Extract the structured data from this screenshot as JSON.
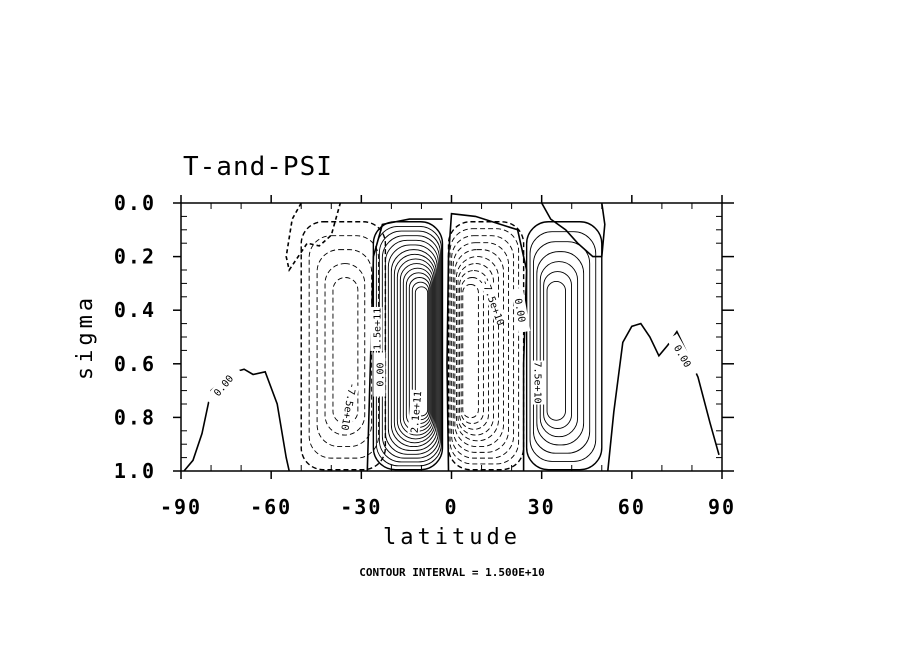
{
  "chart_data": {
    "type": "contour",
    "title": "T-and-PSI",
    "xlabel": "latitude",
    "ylabel": "sigma",
    "xlim": [
      -90,
      90
    ],
    "ylim": [
      0.0,
      1.0
    ],
    "y_inverted": true,
    "x_ticks": [
      -90,
      -60,
      -30,
      0,
      30,
      60,
      90
    ],
    "y_ticks": [
      0.0,
      0.2,
      0.4,
      0.6,
      0.8,
      1.0
    ],
    "y_tick_labels": [
      "0.0",
      "0.2",
      "0.4",
      "0.6",
      "0.8",
      "1.0"
    ],
    "contour_interval": 15000000000.0,
    "contour_interval_label": "CONTOUR INTERVAL = 1.500E+10",
    "negative_contours": "dashed",
    "zero_contour": "thick solid",
    "cells": [
      {
        "name": "southern midlatitude cell",
        "sign": "negative",
        "lat_range": [
          -50,
          -22
        ],
        "center": [
          -35,
          0.55
        ],
        "levels": 5
      },
      {
        "name": "southern tropical cell",
        "sign": "positive",
        "lat_range": [
          -26,
          -3
        ],
        "center": [
          -9,
          0.55
        ],
        "levels": 15
      },
      {
        "name": "northern tropical cell",
        "sign": "negative",
        "lat_range": [
          -1,
          24
        ],
        "center": [
          5,
          0.55
        ],
        "levels": 10
      },
      {
        "name": "northern midlatitude cell",
        "sign": "positive",
        "lat_range": [
          25,
          50
        ],
        "center": [
          34,
          0.55
        ],
        "levels": 7
      }
    ],
    "contour_labels": [
      {
        "text": "0.00",
        "lat": -76,
        "sigma": 0.68,
        "rotation": -50
      },
      {
        "text": "-7.5e+10",
        "lat": -34,
        "sigma": 0.76,
        "rotation": 100
      },
      {
        "text": "0.00",
        "lat": -24,
        "sigma": 0.64,
        "rotation": -90
      },
      {
        "text": "1.5e+11",
        "lat": -25,
        "sigma": 0.47,
        "rotation": -90
      },
      {
        "text": "2.1e+11",
        "lat": -12,
        "sigma": 0.78,
        "rotation": -85
      },
      {
        "text": "-7.5e+10",
        "lat": 14,
        "sigma": 0.37,
        "rotation": 70
      },
      {
        "text": "0.00",
        "lat": 23,
        "sigma": 0.4,
        "rotation": 80
      },
      {
        "text": "7.5e+10",
        "lat": 29,
        "sigma": 0.67,
        "rotation": 90
      },
      {
        "text": "0.00",
        "lat": 77,
        "sigma": 0.57,
        "rotation": 60
      }
    ],
    "zero_line_south": [
      [
        -89,
        1.0
      ],
      [
        -86,
        0.96
      ],
      [
        -83,
        0.86
      ],
      [
        -80,
        0.7
      ],
      [
        -76,
        0.66
      ],
      [
        -72,
        0.63
      ],
      [
        -69,
        0.62
      ],
      [
        -66,
        0.64
      ],
      [
        -62,
        0.63
      ],
      [
        -58,
        0.75
      ],
      [
        -55,
        0.95
      ],
      [
        -54,
        1.0
      ]
    ],
    "zero_line_north": [
      [
        52,
        1.0
      ],
      [
        54,
        0.78
      ],
      [
        57,
        0.52
      ],
      [
        60,
        0.46
      ],
      [
        63,
        0.45
      ],
      [
        66,
        0.5
      ],
      [
        69,
        0.57
      ],
      [
        72,
        0.53
      ],
      [
        75,
        0.48
      ],
      [
        78,
        0.55
      ],
      [
        82,
        0.65
      ],
      [
        86,
        0.82
      ],
      [
        88,
        0.9
      ],
      [
        89,
        0.94
      ]
    ],
    "zero_line_top_south": [
      [
        -50,
        0.0
      ],
      [
        -53,
        0.06
      ],
      [
        -55,
        0.2
      ],
      [
        -54,
        0.25
      ],
      [
        -48,
        0.15
      ],
      [
        -44,
        0.16
      ],
      [
        -40,
        0.12
      ],
      [
        -37,
        0.0
      ]
    ],
    "zero_line_top_north": [
      [
        50,
        0.0
      ],
      [
        51,
        0.08
      ],
      [
        50,
        0.2
      ],
      [
        47,
        0.2
      ],
      [
        42,
        0.15
      ],
      [
        38,
        0.1
      ],
      [
        33,
        0.06
      ],
      [
        30,
        0.0
      ]
    ]
  }
}
